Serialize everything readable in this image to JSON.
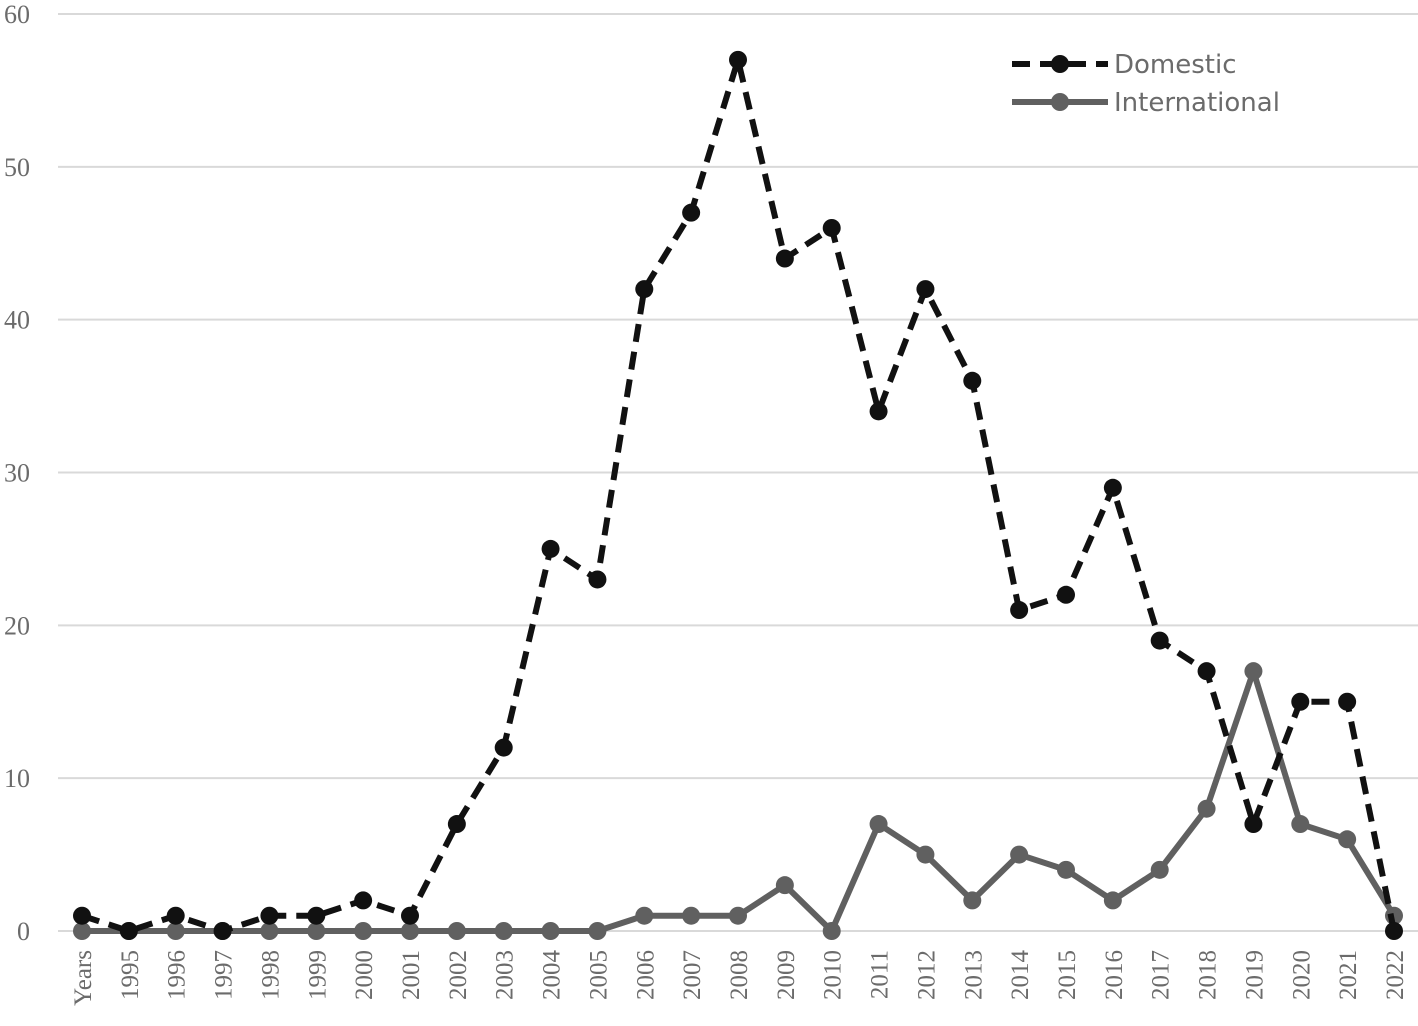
{
  "chart_data": {
    "type": "line",
    "categories": [
      "Years",
      "1995",
      "1996",
      "1997",
      "1998",
      "1999",
      "2000",
      "2001",
      "2002",
      "2003",
      "2004",
      "2005",
      "2006",
      "2007",
      "2008",
      "2009",
      "2010",
      "2011",
      "2012",
      "2013",
      "2014",
      "2015",
      "2016",
      "2017",
      "2018",
      "2019",
      "2020",
      "2021",
      "2022"
    ],
    "series": [
      {
        "name": "Domestic",
        "color": "#111111",
        "style": "dashed",
        "values": [
          1,
          0,
          1,
          0,
          1,
          1,
          2,
          1,
          7,
          12,
          25,
          23,
          42,
          47,
          57,
          44,
          46,
          34,
          42,
          36,
          21,
          22,
          29,
          19,
          17,
          7,
          15,
          15,
          0
        ]
      },
      {
        "name": "International",
        "color": "#606060",
        "style": "solid",
        "values": [
          0,
          0,
          0,
          0,
          0,
          0,
          0,
          0,
          0,
          0,
          0,
          0,
          1,
          1,
          1,
          3,
          0,
          7,
          5,
          2,
          5,
          4,
          2,
          4,
          8,
          17,
          7,
          6,
          1
        ]
      }
    ],
    "ylim": [
      0,
      60
    ],
    "yticks": [
      0,
      10,
      20,
      30,
      40,
      50,
      60
    ],
    "grid": true,
    "legend_position": "top-right"
  }
}
